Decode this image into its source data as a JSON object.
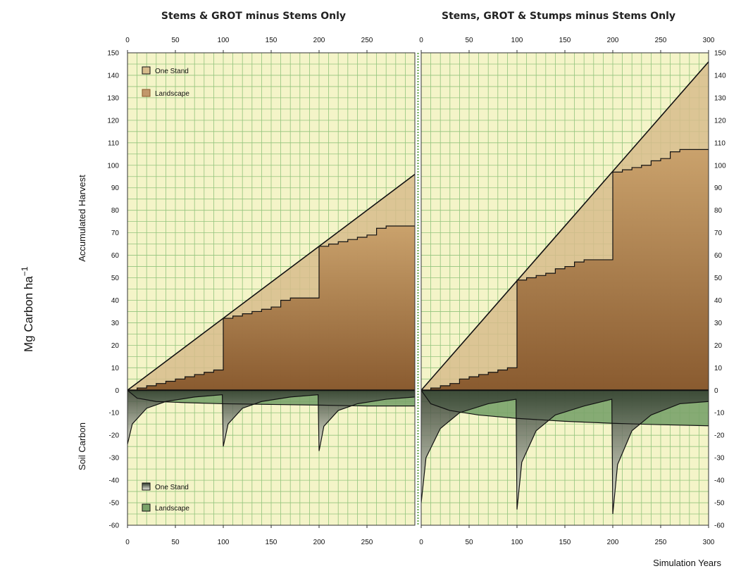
{
  "figure": {
    "y_axis_title": "Mg Carbon  ha",
    "y_axis_superscript": "−1",
    "x_axis_title": "Simulation Years"
  },
  "chart_data": [
    {
      "type": "area",
      "title": "Stems & GROT minus Stems Only",
      "xlim": [
        0,
        300
      ],
      "x_ticks": [
        0,
        50,
        100,
        150,
        200,
        250
      ],
      "ylim": [
        -60,
        150
      ],
      "y_ticks": [
        150,
        140,
        130,
        120,
        110,
        100,
        90,
        80,
        70,
        60,
        50,
        40,
        30,
        20,
        10,
        0,
        -10,
        -20,
        -30,
        -40,
        -50,
        -60
      ],
      "upper_label": "Accumulated Harvest",
      "lower_label": "Soil Carbon",
      "harvest_legend": [
        "One Stand",
        "Landscape"
      ],
      "soil_legend": [
        "One Stand",
        "Landscape"
      ],
      "harvest_one_stand": {
        "x": [
          0,
          300
        ],
        "y": [
          0,
          96
        ]
      },
      "harvest_landscape": {
        "x": [
          0,
          10,
          10,
          20,
          20,
          30,
          30,
          40,
          40,
          50,
          50,
          60,
          60,
          70,
          70,
          80,
          80,
          90,
          90,
          100,
          100,
          110,
          110,
          120,
          120,
          130,
          130,
          140,
          140,
          150,
          150,
          160,
          160,
          170,
          170,
          200,
          200,
          210,
          210,
          220,
          220,
          230,
          230,
          240,
          240,
          250,
          250,
          260,
          260,
          270,
          270,
          300
        ],
        "y": [
          0,
          0,
          1,
          1,
          2,
          2,
          3,
          3,
          4,
          4,
          5,
          5,
          6,
          6,
          7,
          7,
          8,
          8,
          9,
          9,
          32,
          32,
          33,
          33,
          34,
          34,
          35,
          35,
          36,
          36,
          37,
          37,
          40,
          40,
          41,
          41,
          64,
          64,
          65,
          65,
          66,
          66,
          67,
          67,
          68,
          68,
          69,
          69,
          72,
          72,
          73,
          73
        ]
      },
      "soil_one_stand": {
        "x": [
          0,
          5,
          20,
          40,
          70,
          99,
          100,
          105,
          120,
          140,
          170,
          199,
          200,
          205,
          220,
          240,
          270,
          300
        ],
        "y": [
          -24,
          -15,
          -8,
          -5,
          -3,
          -2,
          -25,
          -15,
          -8,
          -5,
          -3,
          -2,
          -27,
          -16,
          -9,
          -6,
          -4,
          -3
        ]
      },
      "soil_landscape": {
        "x": [
          0,
          10,
          30,
          60,
          100,
          150,
          200,
          250,
          300
        ],
        "y": [
          0,
          -3.5,
          -5,
          -5.5,
          -6,
          -6.3,
          -6.6,
          -7,
          -7
        ]
      }
    },
    {
      "type": "area",
      "title": "Stems, GROT & Stumps minus Stems Only",
      "xlim": [
        0,
        300
      ],
      "x_ticks": [
        0,
        50,
        100,
        150,
        200,
        250,
        300
      ],
      "ylim": [
        -60,
        150
      ],
      "y_ticks": [
        150,
        140,
        130,
        120,
        110,
        100,
        90,
        80,
        70,
        60,
        50,
        40,
        30,
        20,
        10,
        0,
        -10,
        -20,
        -30,
        -40,
        -50,
        -60
      ],
      "harvest_one_stand": {
        "x": [
          0,
          300
        ],
        "y": [
          0,
          146
        ]
      },
      "harvest_landscape": {
        "x": [
          0,
          10,
          10,
          20,
          20,
          30,
          30,
          40,
          40,
          50,
          50,
          60,
          60,
          70,
          70,
          80,
          80,
          90,
          90,
          100,
          100,
          110,
          110,
          120,
          120,
          130,
          130,
          140,
          140,
          150,
          150,
          160,
          160,
          170,
          170,
          200,
          200,
          210,
          210,
          220,
          220,
          230,
          230,
          240,
          240,
          250,
          250,
          260,
          260,
          270,
          270,
          300
        ],
        "y": [
          0,
          0,
          1,
          1,
          2,
          2,
          3,
          3,
          5,
          5,
          6,
          6,
          7,
          7,
          8,
          8,
          9,
          9,
          10,
          10,
          49,
          49,
          50,
          50,
          51,
          51,
          52,
          52,
          54,
          54,
          55,
          55,
          57,
          57,
          58,
          58,
          97,
          97,
          98,
          98,
          99,
          99,
          100,
          100,
          102,
          102,
          103,
          103,
          106,
          106,
          107,
          107
        ]
      },
      "soil_one_stand": {
        "x": [
          0,
          5,
          20,
          40,
          70,
          99,
          100,
          105,
          120,
          140,
          170,
          199,
          200,
          205,
          220,
          240,
          270,
          300
        ],
        "y": [
          -50,
          -30,
          -17,
          -10,
          -6,
          -4,
          -53,
          -32,
          -18,
          -11,
          -7,
          -4,
          -55,
          -33,
          -18,
          -11,
          -6,
          -5
        ]
      },
      "soil_landscape": {
        "x": [
          0,
          10,
          30,
          60,
          100,
          150,
          200,
          250,
          300
        ],
        "y": [
          0,
          -6,
          -9,
          -11,
          -12.5,
          -13.8,
          -14.7,
          -15.3,
          -15.8
        ]
      }
    }
  ],
  "colors": {
    "grid_bg": "#f4f4c8",
    "grid_line": "#93c47d",
    "harvest_stand": "#d7bc8c",
    "harvest_land_top": "#c79b63",
    "harvest_land_bottom": "#8a5a2b",
    "soil_land": "#7aa36a",
    "soil_stand_top": "#2f3a2c",
    "soil_stand_bottom": "#e5e5da",
    "line": "#111111"
  }
}
